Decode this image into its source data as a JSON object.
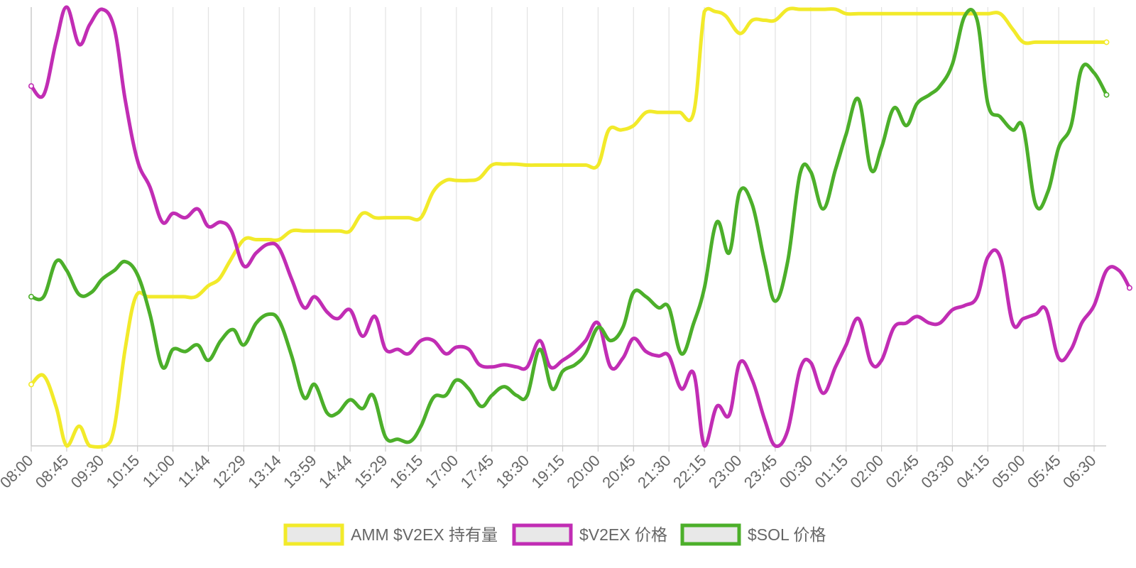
{
  "colors": {
    "amm": "#f2ea2a",
    "v2ex": "#c12db4",
    "sol": "#4caf2a",
    "grid": "#e2e2e2",
    "axis": "#cccccc",
    "legend_fill": "#e8e8e8"
  },
  "chart_data": {
    "type": "line",
    "x_tick_labels": [
      "08:00",
      "08:45",
      "09:30",
      "10:15",
      "11:00",
      "11:44",
      "12:29",
      "13:14",
      "13:59",
      "14:44",
      "15:29",
      "16:15",
      "17:00",
      "17:45",
      "18:30",
      "19:15",
      "20:00",
      "20:45",
      "21:30",
      "22:15",
      "23:00",
      "23:45",
      "00:30",
      "01:15",
      "02:00",
      "02:45",
      "03:30",
      "04:15",
      "05:00",
      "05:45",
      "06:30"
    ],
    "y_axis": "none",
    "grid": "vertical",
    "legend_position": "bottom",
    "x_range": [
      0,
      30.3
    ],
    "y_range": [
      0,
      100
    ],
    "series": [
      {
        "name": "AMM $V2EX 持有量",
        "color_key": "amm",
        "points": [
          [
            0,
            14
          ],
          [
            0.35,
            16
          ],
          [
            0.7,
            9
          ],
          [
            1,
            0
          ],
          [
            1.35,
            4.5
          ],
          [
            1.65,
            0
          ],
          [
            2.1,
            0
          ],
          [
            2.35,
            4.5
          ],
          [
            2.65,
            22
          ],
          [
            2.95,
            34
          ],
          [
            3.3,
            34
          ],
          [
            3.7,
            34
          ],
          [
            4,
            34
          ],
          [
            4.3,
            34
          ],
          [
            4.65,
            34
          ],
          [
            5,
            36.5
          ],
          [
            5.3,
            38
          ],
          [
            5.6,
            42
          ],
          [
            6,
            47
          ],
          [
            6.35,
            47
          ],
          [
            6.7,
            47
          ],
          [
            7,
            47
          ],
          [
            7.35,
            49
          ],
          [
            7.7,
            49
          ],
          [
            8,
            49
          ],
          [
            8.35,
            49
          ],
          [
            8.7,
            49
          ],
          [
            9,
            49
          ],
          [
            9.35,
            53
          ],
          [
            9.7,
            52
          ],
          [
            10,
            52
          ],
          [
            10.35,
            52
          ],
          [
            10.65,
            52
          ],
          [
            11,
            52
          ],
          [
            11.35,
            58
          ],
          [
            11.7,
            60.5
          ],
          [
            12,
            60.5
          ],
          [
            12.35,
            60.5
          ],
          [
            12.65,
            61
          ],
          [
            13,
            64
          ],
          [
            13.35,
            64.2
          ],
          [
            13.7,
            64.2
          ],
          [
            14,
            64
          ],
          [
            14.35,
            64
          ],
          [
            14.7,
            64
          ],
          [
            15,
            64
          ],
          [
            15.35,
            64
          ],
          [
            15.65,
            64
          ],
          [
            16,
            64
          ],
          [
            16.3,
            72
          ],
          [
            16.65,
            72
          ],
          [
            17,
            73
          ],
          [
            17.35,
            76
          ],
          [
            17.7,
            76
          ],
          [
            18,
            76
          ],
          [
            18.3,
            76
          ],
          [
            18.7,
            76
          ],
          [
            19,
            99
          ],
          [
            19.3,
            99
          ],
          [
            19.6,
            98
          ],
          [
            20,
            94
          ],
          [
            20.35,
            97
          ],
          [
            20.7,
            97
          ],
          [
            21,
            97
          ],
          [
            21.35,
            99.5
          ],
          [
            21.7,
            99.5
          ],
          [
            22,
            99.5
          ],
          [
            22.35,
            99.5
          ],
          [
            22.7,
            99.5
          ],
          [
            23,
            98.5
          ],
          [
            23.35,
            98.5
          ],
          [
            23.7,
            98.5
          ],
          [
            24,
            98.5
          ],
          [
            24.35,
            98.5
          ],
          [
            24.7,
            98.5
          ],
          [
            25,
            98.5
          ],
          [
            25.35,
            98.5
          ],
          [
            25.65,
            98.5
          ],
          [
            26,
            98.5
          ],
          [
            26.35,
            98.5
          ],
          [
            26.65,
            98.5
          ],
          [
            27,
            98.5
          ],
          [
            27.35,
            98.5
          ],
          [
            27.7,
            95
          ],
          [
            28,
            92
          ],
          [
            28.35,
            92
          ],
          [
            28.7,
            92
          ],
          [
            29,
            92
          ],
          [
            29.35,
            92
          ],
          [
            29.7,
            92
          ],
          [
            30,
            92
          ],
          [
            30.35,
            92
          ]
        ]
      },
      {
        "name": "$V2EX 价格",
        "color_key": "v2ex",
        "points": [
          [
            0,
            82
          ],
          [
            0.35,
            80
          ],
          [
            0.7,
            92
          ],
          [
            1,
            100
          ],
          [
            1.35,
            91.5
          ],
          [
            1.65,
            96
          ],
          [
            2,
            99.5
          ],
          [
            2.35,
            95
          ],
          [
            2.65,
            79
          ],
          [
            3,
            65
          ],
          [
            3.35,
            59
          ],
          [
            3.7,
            51
          ],
          [
            4,
            53
          ],
          [
            4.35,
            52
          ],
          [
            4.7,
            54
          ],
          [
            5,
            50
          ],
          [
            5.35,
            51
          ],
          [
            5.65,
            49
          ],
          [
            6,
            41
          ],
          [
            6.35,
            44
          ],
          [
            6.7,
            46
          ],
          [
            7,
            45
          ],
          [
            7.35,
            38
          ],
          [
            7.7,
            31.5
          ],
          [
            8,
            34
          ],
          [
            8.35,
            30.5
          ],
          [
            8.65,
            29
          ],
          [
            9,
            31
          ],
          [
            9.35,
            25
          ],
          [
            9.7,
            29.5
          ],
          [
            10,
            22
          ],
          [
            10.35,
            22
          ],
          [
            10.65,
            21
          ],
          [
            11,
            24
          ],
          [
            11.35,
            24
          ],
          [
            11.7,
            21
          ],
          [
            12,
            22.5
          ],
          [
            12.35,
            22
          ],
          [
            12.65,
            18.5
          ],
          [
            13,
            18
          ],
          [
            13.35,
            18.5
          ],
          [
            13.7,
            18
          ],
          [
            14,
            18
          ],
          [
            14.35,
            24
          ],
          [
            14.65,
            18
          ],
          [
            15,
            19.5
          ],
          [
            15.35,
            21.5
          ],
          [
            15.65,
            24
          ],
          [
            16,
            28
          ],
          [
            16.35,
            18
          ],
          [
            16.7,
            20
          ],
          [
            17,
            24.5
          ],
          [
            17.35,
            21.5
          ],
          [
            17.7,
            20.5
          ],
          [
            18,
            20.5
          ],
          [
            18.35,
            13
          ],
          [
            18.7,
            16.5
          ],
          [
            19,
            0
          ],
          [
            19.35,
            9
          ],
          [
            19.7,
            7
          ],
          [
            20,
            19
          ],
          [
            20.35,
            15
          ],
          [
            20.7,
            6
          ],
          [
            21,
            0
          ],
          [
            21.35,
            3.5
          ],
          [
            21.7,
            17.5
          ],
          [
            22,
            19
          ],
          [
            22.35,
            12
          ],
          [
            22.7,
            18
          ],
          [
            23,
            23
          ],
          [
            23.35,
            29
          ],
          [
            23.7,
            19
          ],
          [
            24,
            19.5
          ],
          [
            24.35,
            27
          ],
          [
            24.7,
            28
          ],
          [
            25,
            29.5
          ],
          [
            25.35,
            28
          ],
          [
            25.65,
            28
          ],
          [
            26,
            31
          ],
          [
            26.35,
            32
          ],
          [
            26.7,
            34
          ],
          [
            27,
            43
          ],
          [
            27.35,
            43
          ],
          [
            27.7,
            28
          ],
          [
            28,
            29
          ],
          [
            28.35,
            30
          ],
          [
            28.65,
            31
          ],
          [
            29,
            20
          ],
          [
            29.35,
            22
          ],
          [
            29.65,
            28
          ],
          [
            30,
            32
          ],
          [
            30.35,
            40
          ],
          [
            30.7,
            40
          ],
          [
            31,
            36
          ]
        ]
      },
      {
        "name": "$SOL 价格",
        "color_key": "sol",
        "points": [
          [
            0,
            34
          ],
          [
            0.35,
            34
          ],
          [
            0.7,
            42
          ],
          [
            1,
            40
          ],
          [
            1.35,
            34.5
          ],
          [
            1.7,
            35
          ],
          [
            2,
            38
          ],
          [
            2.35,
            40
          ],
          [
            2.65,
            42
          ],
          [
            3,
            39
          ],
          [
            3.35,
            30
          ],
          [
            3.7,
            18
          ],
          [
            4,
            22
          ],
          [
            4.35,
            21.5
          ],
          [
            4.7,
            23
          ],
          [
            5,
            19.5
          ],
          [
            5.35,
            24
          ],
          [
            5.7,
            26.5
          ],
          [
            6,
            23
          ],
          [
            6.35,
            28
          ],
          [
            6.7,
            30
          ],
          [
            7,
            28.5
          ],
          [
            7.35,
            20.5
          ],
          [
            7.7,
            11
          ],
          [
            8,
            14
          ],
          [
            8.35,
            7.5
          ],
          [
            8.65,
            7.5
          ],
          [
            9,
            10.5
          ],
          [
            9.35,
            8.5
          ],
          [
            9.65,
            11.5
          ],
          [
            10,
            2
          ],
          [
            10.35,
            1.5
          ],
          [
            10.7,
            1
          ],
          [
            11,
            4.5
          ],
          [
            11.35,
            11
          ],
          [
            11.7,
            11.5
          ],
          [
            12,
            15
          ],
          [
            12.35,
            13
          ],
          [
            12.7,
            9
          ],
          [
            13,
            11.5
          ],
          [
            13.35,
            13.5
          ],
          [
            13.7,
            11.5
          ],
          [
            14,
            11.5
          ],
          [
            14.35,
            22
          ],
          [
            14.7,
            13
          ],
          [
            15,
            17
          ],
          [
            15.35,
            18.5
          ],
          [
            15.65,
            21
          ],
          [
            16,
            27
          ],
          [
            16.35,
            24
          ],
          [
            16.7,
            27
          ],
          [
            17,
            35
          ],
          [
            17.35,
            34
          ],
          [
            17.7,
            31.5
          ],
          [
            18,
            31.5
          ],
          [
            18.35,
            21
          ],
          [
            18.7,
            28
          ],
          [
            19,
            36
          ],
          [
            19.35,
            51
          ],
          [
            19.7,
            44
          ],
          [
            20,
            58
          ],
          [
            20.35,
            55
          ],
          [
            20.7,
            42
          ],
          [
            21,
            33
          ],
          [
            21.35,
            42
          ],
          [
            21.7,
            62
          ],
          [
            22,
            62.5
          ],
          [
            22.35,
            54
          ],
          [
            22.7,
            63
          ],
          [
            23,
            71
          ],
          [
            23.35,
            79
          ],
          [
            23.7,
            63
          ],
          [
            24,
            68
          ],
          [
            24.35,
            77
          ],
          [
            24.7,
            73
          ],
          [
            25,
            78
          ],
          [
            25.35,
            80
          ],
          [
            25.65,
            82
          ],
          [
            26,
            87
          ],
          [
            26.35,
            98
          ],
          [
            26.7,
            97
          ],
          [
            27,
            78
          ],
          [
            27.35,
            75
          ],
          [
            27.7,
            72
          ],
          [
            28,
            72.5
          ],
          [
            28.35,
            55
          ],
          [
            28.7,
            58
          ],
          [
            29,
            68
          ],
          [
            29.35,
            73
          ],
          [
            29.65,
            86
          ],
          [
            30,
            85
          ],
          [
            30.35,
            80
          ]
        ]
      }
    ]
  }
}
